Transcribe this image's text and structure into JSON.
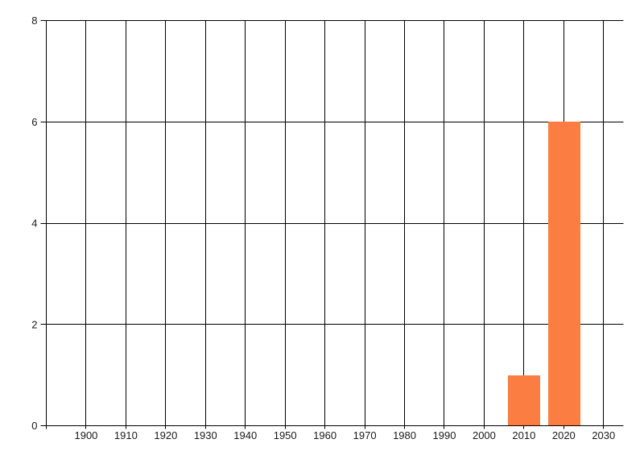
{
  "chart_data": {
    "type": "bar",
    "title": "",
    "xlabel": "",
    "ylabel": "",
    "xlim": [
      1890,
      2035
    ],
    "ylim": [
      0,
      8
    ],
    "grid": true,
    "legend": false,
    "x_gridline_years": [
      1890,
      1900,
      1910,
      1920,
      1930,
      1940,
      1950,
      1960,
      1970,
      1980,
      1990,
      2000,
      2010,
      2020,
      2030
    ],
    "x_tick_labels": [
      "1900",
      "1910",
      "1920",
      "1930",
      "1940",
      "1950",
      "1960",
      "1970",
      "1980",
      "1990",
      "2000",
      "2010",
      "2020",
      "2030"
    ],
    "y_ticks": [
      0,
      2,
      4,
      6,
      8
    ],
    "bars": [
      {
        "x": 2010,
        "value": 1
      },
      {
        "x": 2020,
        "value": 6
      }
    ],
    "bar_width_years": 8,
    "colors": {
      "bar": "#FC7D42",
      "gridline": "#000000",
      "tick_label": "#1A1A1A",
      "background": "#FFFFFF"
    }
  }
}
